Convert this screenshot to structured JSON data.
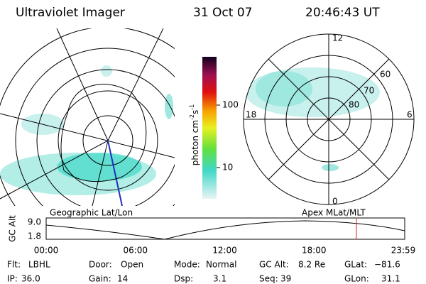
{
  "header": {
    "title": "Ultraviolet Imager",
    "date": "31 Oct 07",
    "time": "20:46:43 UT"
  },
  "colorbar": {
    "unit": [
      "photon cm",
      "-2",
      "s",
      "-1"
    ],
    "ticks": [
      "100",
      "10"
    ]
  },
  "geo_map": {
    "label": "Geographic Lat/Lon"
  },
  "polar_map": {
    "label": "Apex MLat/MLT",
    "mlt": [
      "12",
      "18",
      "6",
      "0"
    ],
    "mlat": [
      "60",
      "70",
      "80"
    ]
  },
  "altitude_plot": {
    "ylabel": "GC Alt",
    "yticks": [
      "9.0",
      "1.8"
    ],
    "xticks": [
      "00:00",
      "06:00",
      "12:00",
      "18:00",
      "23:59"
    ]
  },
  "fields": [
    {
      "label": "Flt:",
      "value": "LBHL"
    },
    {
      "label": "IP:",
      "value": "36.0"
    },
    {
      "label": "Door:",
      "value": "Open"
    },
    {
      "label": "Gain:",
      "value": "14"
    },
    {
      "label": "Mode:",
      "value": "Normal"
    },
    {
      "label": "Dsp:",
      "value": "3.1"
    },
    {
      "label": "GC Alt:",
      "value": "8.2 Re"
    },
    {
      "label": "Seq:",
      "value": "39"
    },
    {
      "label": "GLat:",
      "value": "−81.6"
    },
    {
      "label": "GLon:",
      "value": "31.1"
    }
  ]
}
